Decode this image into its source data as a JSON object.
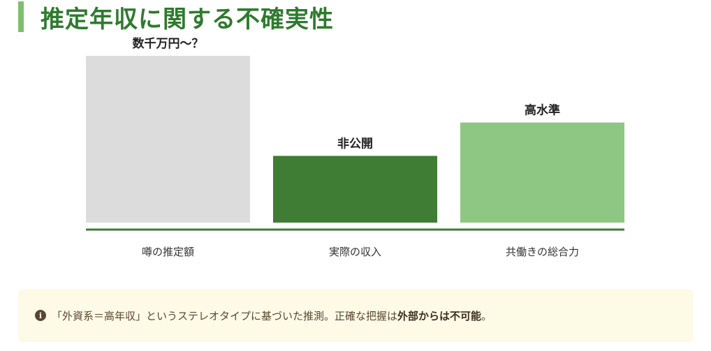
{
  "title": "推定年収に関する不確実性",
  "chart_data": {
    "type": "bar",
    "categories": [
      "噂の推定額",
      "実際の収入",
      "共働きの総合力"
    ],
    "values": [
      100,
      40,
      60
    ],
    "value_labels": [
      "数千万円～？",
      "非公開",
      "高水準"
    ],
    "colors": [
      "#dcdcdc",
      "#3e7d33",
      "#8dc783"
    ],
    "axis_color": "#3e7d33",
    "ylim": [
      0,
      100
    ],
    "grid": false,
    "legend": "none"
  },
  "note": {
    "icon": "info-icon",
    "text_plain": "「外資系＝高年収」というステレオタイプに基づいた推測。正確な把握は",
    "text_bold": "外部からは不可能",
    "text_end": "。"
  }
}
